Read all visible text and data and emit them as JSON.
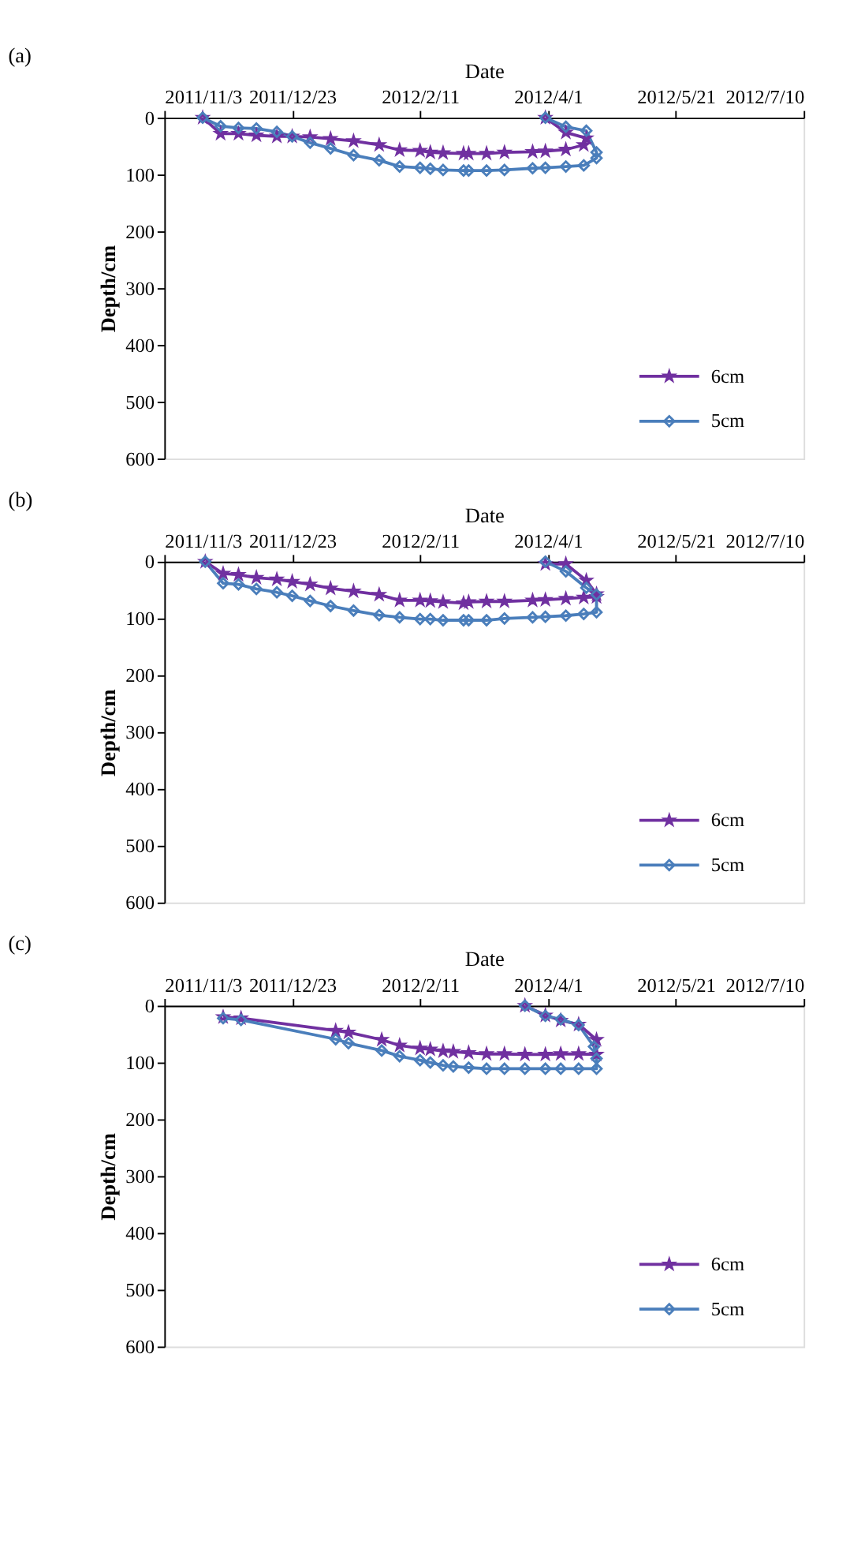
{
  "chart_data": [
    {
      "type": "line",
      "title": "(a)",
      "xlabel": "Date",
      "ylabel": "Depth/cm",
      "xlim": [
        "2011-11-03",
        "2012-07-10"
      ],
      "xticks": [
        {
          "value": "2011-11-03",
          "label": "2011/11/3"
        },
        {
          "value": "2011-12-23",
          "label": "2011/12/23"
        },
        {
          "value": "2012-02-11",
          "label": "2012/2/11"
        },
        {
          "value": "2012-04-01",
          "label": "2012/4/1"
        },
        {
          "value": "2012-05-21",
          "label": "2012/5/21"
        },
        {
          "value": "2012-07-10",
          "label": "2012/7/10"
        }
      ],
      "ylim": [
        600,
        0
      ],
      "yticks": [
        0,
        100,
        200,
        300,
        400,
        500,
        600
      ],
      "legend": "bottom right",
      "grid": false,
      "line_style": "solid",
      "series": [
        {
          "name": "6cm",
          "color": "#7030a0",
          "marker": "star",
          "x": [
            "2011-11-18",
            "2011-11-25",
            "2011-12-02",
            "2011-12-09",
            "2011-12-17",
            "2011-12-23",
            "2011-12-30",
            "2012-01-07",
            "2012-01-16",
            "2012-01-26",
            "2012-02-03",
            "2012-02-11",
            "2012-02-15",
            "2012-02-20",
            "2012-02-28",
            "2012-03-01",
            "2012-03-08",
            "2012-03-15",
            "2012-03-26",
            "2012-03-31",
            "2012-04-08",
            "2012-04-15",
            "2012-04-16",
            "2012-04-08",
            "2012-03-31"
          ],
          "values": [
            0,
            28,
            28,
            31,
            33,
            33,
            34,
            37,
            41,
            48,
            57,
            58,
            61,
            62,
            63,
            63,
            63,
            61,
            60,
            59,
            56,
            48,
            36,
            26,
            0
          ]
        },
        {
          "name": "5cm",
          "color": "#4a7ebb",
          "marker": "diamond",
          "x": [
            "2011-11-18",
            "2011-11-25",
            "2011-12-02",
            "2011-12-09",
            "2011-12-17",
            "2011-12-23",
            "2011-12-30",
            "2012-01-07",
            "2012-01-16",
            "2012-01-26",
            "2012-02-03",
            "2012-02-11",
            "2012-02-15",
            "2012-02-20",
            "2012-02-28",
            "2012-03-01",
            "2012-03-08",
            "2012-03-15",
            "2012-03-26",
            "2012-03-31",
            "2012-04-08",
            "2012-04-15",
            "2012-04-20",
            "2012-04-20",
            "2012-04-16",
            "2012-04-08",
            "2012-03-31"
          ],
          "values": [
            0,
            15,
            18,
            19,
            25,
            33,
            44,
            54,
            66,
            75,
            86,
            88,
            90,
            92,
            93,
            93,
            93,
            92,
            89,
            88,
            86,
            84,
            71,
            61,
            23,
            16,
            0
          ]
        }
      ]
    },
    {
      "type": "line",
      "title": "(b)",
      "xlabel": "Date",
      "ylabel": "Depth/cm",
      "xlim": [
        "2011-11-03",
        "2012-07-10"
      ],
      "xticks": [
        {
          "value": "2011-11-03",
          "label": "2011/11/3"
        },
        {
          "value": "2011-12-23",
          "label": "2011/12/23"
        },
        {
          "value": "2012-02-11",
          "label": "2012/2/11"
        },
        {
          "value": "2012-04-01",
          "label": "2012/4/1"
        },
        {
          "value": "2012-05-21",
          "label": "2012/5/21"
        },
        {
          "value": "2012-07-10",
          "label": "2012/7/10"
        }
      ],
      "ylim": [
        600,
        0
      ],
      "yticks": [
        0,
        100,
        200,
        300,
        400,
        500,
        600
      ],
      "legend": "bottom right",
      "grid": false,
      "line_style": "solid",
      "series": [
        {
          "name": "6cm",
          "color": "#7030a0",
          "marker": "star",
          "x": [
            "2011-11-19",
            "2011-11-26",
            "2011-12-02",
            "2011-12-09",
            "2011-12-17",
            "2011-12-23",
            "2011-12-30",
            "2012-01-07",
            "2012-01-16",
            "2012-01-26",
            "2012-02-03",
            "2012-02-11",
            "2012-02-15",
            "2012-02-20",
            "2012-02-28",
            "2012-03-01",
            "2012-03-08",
            "2012-03-15",
            "2012-03-26",
            "2012-03-31",
            "2012-04-08",
            "2012-04-15",
            "2012-04-20",
            "2012-04-20",
            "2012-04-16",
            "2012-04-08",
            "2012-03-31"
          ],
          "values": [
            0,
            21,
            23,
            28,
            31,
            35,
            40,
            47,
            52,
            58,
            68,
            68,
            69,
            71,
            73,
            71,
            70,
            70,
            68,
            67,
            65,
            63,
            62,
            57,
            33,
            4,
            4
          ]
        },
        {
          "name": "5cm",
          "color": "#4a7ebb",
          "marker": "diamond",
          "x": [
            "2011-11-19",
            "2011-11-26",
            "2011-12-02",
            "2011-12-09",
            "2011-12-17",
            "2011-12-23",
            "2011-12-30",
            "2012-01-07",
            "2012-01-16",
            "2012-01-26",
            "2012-02-03",
            "2012-02-11",
            "2012-02-15",
            "2012-02-20",
            "2012-02-28",
            "2012-03-01",
            "2012-03-08",
            "2012-03-15",
            "2012-03-26",
            "2012-03-31",
            "2012-04-08",
            "2012-04-15",
            "2012-04-20",
            "2012-04-20",
            "2012-04-16",
            "2012-04-08",
            "2012-03-31"
          ],
          "values": [
            0,
            38,
            40,
            48,
            54,
            60,
            69,
            78,
            86,
            94,
            98,
            101,
            101,
            103,
            103,
            103,
            103,
            100,
            98,
            97,
            95,
            92,
            89,
            58,
            46,
            17,
            0
          ]
        }
      ]
    },
    {
      "type": "line",
      "title": "(c)",
      "xlabel": "Date",
      "ylabel": "Depth/cm",
      "xlim": [
        "2011-11-03",
        "2012-07-10"
      ],
      "xticks": [
        {
          "value": "2011-11-03",
          "label": "2011/11/3"
        },
        {
          "value": "2011-12-23",
          "label": "2011/12/23"
        },
        {
          "value": "2012-02-11",
          "label": "2012/2/11"
        },
        {
          "value": "2012-04-01",
          "label": "2012/4/1"
        },
        {
          "value": "2012-05-21",
          "label": "2012/5/21"
        },
        {
          "value": "2012-07-10",
          "label": "2012/7/10"
        }
      ],
      "ylim": [
        600,
        0
      ],
      "yticks": [
        0,
        100,
        200,
        300,
        400,
        500,
        600
      ],
      "legend": "bottom right",
      "grid": false,
      "line_style": "solid",
      "series": [
        {
          "name": "6cm",
          "color": "#7030a0",
          "marker": "star",
          "x": [
            "2011-11-26",
            "2011-12-03",
            "2012-01-09",
            "2012-01-14",
            "2012-01-27",
            "2012-02-03",
            "2012-02-11",
            "2012-02-15",
            "2012-02-20",
            "2012-02-24",
            "2012-03-01",
            "2012-03-08",
            "2012-03-15",
            "2012-03-23",
            "2012-03-31",
            "2012-04-06",
            "2012-04-13",
            "2012-04-20",
            "2012-04-20",
            "2012-04-13",
            "2012-04-06",
            "2012-03-31",
            "2012-03-23"
          ],
          "values": [
            20,
            22,
            44,
            47,
            60,
            70,
            75,
            77,
            80,
            81,
            83,
            85,
            85,
            86,
            86,
            85,
            85,
            86,
            60,
            33,
            26,
            17,
            0
          ]
        },
        {
          "name": "5cm",
          "color": "#4a7ebb",
          "marker": "diamond",
          "x": [
            "2011-11-26",
            "2011-12-03",
            "2012-01-09",
            "2012-01-14",
            "2012-01-27",
            "2012-02-03",
            "2012-02-11",
            "2012-02-15",
            "2012-02-20",
            "2012-02-24",
            "2012-03-01",
            "2012-03-08",
            "2012-03-15",
            "2012-03-23",
            "2012-03-31",
            "2012-04-06",
            "2012-04-13",
            "2012-04-20",
            "2012-04-20",
            "2012-04-19",
            "2012-04-13",
            "2012-04-06",
            "2012-03-31",
            "2012-03-23"
          ],
          "values": [
            22,
            25,
            59,
            66,
            79,
            89,
            96,
            100,
            105,
            107,
            109,
            111,
            111,
            111,
            111,
            111,
            111,
            111,
            93,
            72,
            34,
            24,
            18,
            0
          ]
        }
      ]
    }
  ]
}
